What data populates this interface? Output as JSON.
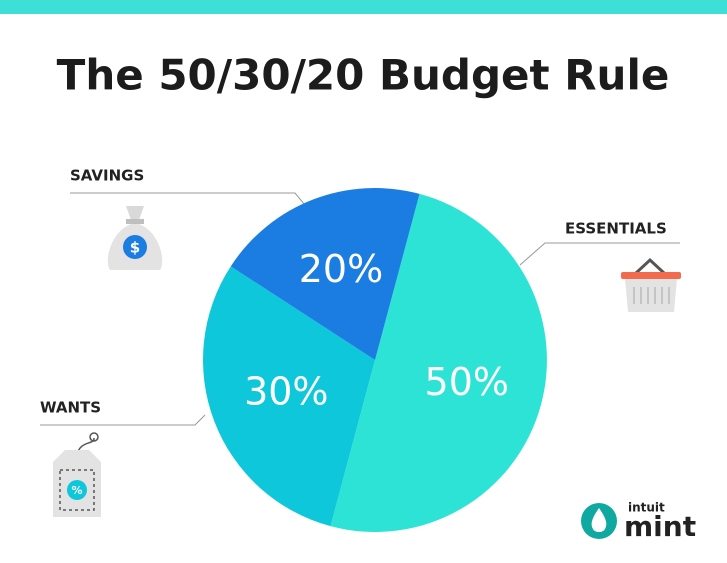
{
  "chart_data": {
    "type": "pie",
    "title": "The 50/30/20 Budget Rule",
    "categories": [
      "ESSENTIALS",
      "WANTS",
      "SAVINGS"
    ],
    "values": [
      50,
      30,
      20
    ],
    "value_labels": [
      "50%",
      "30%",
      "20%"
    ],
    "colors": [
      "#2de3d5",
      "#0fc7da",
      "#1b7ce2"
    ]
  },
  "brand": {
    "company": "intuit",
    "product": "mint"
  }
}
